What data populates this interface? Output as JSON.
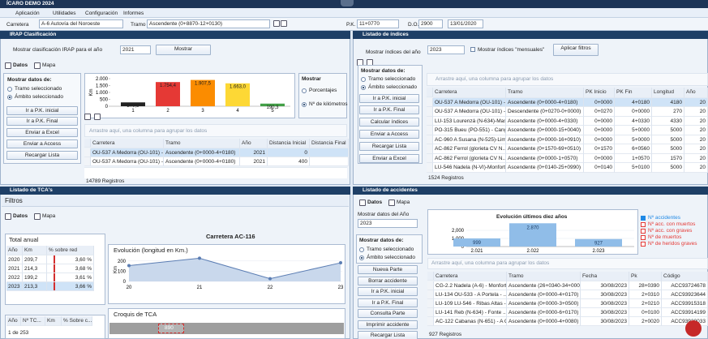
{
  "app": {
    "title": "ÍCARO DEMO 2024",
    "menu": [
      "Aplicación",
      "Utilidades",
      "Configuración",
      "Informes"
    ]
  },
  "toolbar": {
    "road_label": "Carretera",
    "road": "A-6 Autovía del Noroeste",
    "section_label": "Tramo",
    "section": "Ascendente (0+8870-12+0130)",
    "pk_label": "P.K.",
    "pk": "11+0770",
    "do_label": "D.O.",
    "do": "2900",
    "date": "13/01/2020",
    "tooltip": "Tramo"
  },
  "irap": {
    "title": "IRAP Clasificación",
    "year_label": "Mostrar clasificación IRAP para el año",
    "year": "2021",
    "show_button": "Mostrar",
    "tabs": [
      "Datos",
      "Mapa"
    ],
    "group_title": "Mostrar datos de:",
    "radios": [
      "Tramo seleccionado",
      "Ámbito seleccionado"
    ],
    "buttons": [
      "Ir a P.K. inicial",
      "Ir a P.K. Final",
      "Enviar a Excel",
      "Enviar a Access",
      "Recargar Lista"
    ],
    "chart": {
      "type": "bar",
      "y_label": "Km",
      "categories": [
        "1",
        "2",
        "3",
        "4",
        "5"
      ],
      "values": [
        279.5,
        1754.4,
        1907.5,
        1663.0,
        190.3
      ],
      "value_labels": [
        "279,5",
        "1.754,4",
        "1.907,5",
        "1.663,0",
        "190,3"
      ],
      "colors": [
        "#222222",
        "#e53935",
        "#fb8c00",
        "#fdd835",
        "#43a047"
      ],
      "ylim": [
        0,
        2000
      ],
      "yticks": [
        0,
        500,
        {
          "value": 1000,
          "label": "1.000"
        },
        {
          "value": 1500,
          "label": "1.500"
        },
        {
          "value": 2000,
          "label": "2.000"
        }
      ]
    },
    "show_group": {
      "title": "Mostrar",
      "options": [
        "Porcentajes",
        "Nº de kilómetros"
      ]
    },
    "drag_hint": "Arrastre aquí, una columna para agrupar los datos",
    "table": {
      "headers": [
        "Carretera",
        "Tramo",
        "Año",
        "Distancia Inicial",
        "Distancia Final"
      ],
      "rows": [
        [
          "OU-537 A Medorra (OU-101) - ...",
          "Ascendente (0+0000-4+0180)",
          "2021",
          "0",
          ""
        ],
        [
          "OU-537 A Medorra (OU-101) - ...",
          "Ascendente (0+0000-4+0180)",
          "2021",
          "400",
          ""
        ]
      ]
    },
    "records": "14789 Registros"
  },
  "indices": {
    "title": "Listado de índices",
    "year_label": "Mostrar índices del año",
    "year": "2023",
    "monthly": "Mostrar índices \"mensuales\"",
    "apply_button": "Aplicar filtros",
    "group_title": "Mostrar datos de:",
    "radios": [
      "Tramo seleccionado",
      "Ámbito seleccionado"
    ],
    "buttons": [
      "Ir a P.K. inicial",
      "Ir a P.K. Final",
      "Calcular índices",
      "Enviar a Access",
      "Recargar Lista",
      "Enviar a Excel"
    ],
    "drag_hint": "Arrastre aquí, una columna para agrupar los datos",
    "table": {
      "headers": [
        "Carretera",
        "Tramo",
        "PK Inicio",
        "PK Fin",
        "Longitud",
        "Año"
      ],
      "rows": [
        [
          "OU-537 A Medorra (OU-101) -...",
          "Ascendente (0+0000-4+0180)",
          "0+0000",
          "4+0180",
          "4180",
          "20"
        ],
        [
          "OU-537 A Medorra (OU-101) -...",
          "Descendente (0+0270-0+0000)",
          "0+0270",
          "0+0000",
          "270",
          "20"
        ],
        [
          "LU-153 Lourenzá (N-634)-Mas...",
          "Ascendente (0+0000-4+0330)",
          "0+0000",
          "4+0330",
          "4330",
          "20"
        ],
        [
          "PO-315 Bueu (PO-551) - Canga...",
          "Ascendente (0+0000-15+0040)",
          "0+0000",
          "5+0000",
          "5000",
          "20"
        ],
        [
          "AC-960 A Susana (N-525)-Lim...",
          "Ascendente (0+0000-16+0910)",
          "0+0000",
          "5+0000",
          "5000",
          "20"
        ],
        [
          "AC-862 Ferrol (glorieta CV N...",
          "Ascendente (0+1570-69+0510)",
          "0+1570",
          "6+0560",
          "5000",
          "20"
        ],
        [
          "AC-862 Ferrol (glorieta CV N...",
          "Ascendente (0+0000-1+0570)",
          "0+0000",
          "1+0570",
          "1570",
          "20"
        ],
        [
          "LU-546 Nadela (N-VI)-Monfort...",
          "Ascendente (0+0140-25+0990)",
          "0+0140",
          "5+0100",
          "5000",
          "20"
        ]
      ]
    },
    "records": "1524 Registros"
  },
  "tca": {
    "title": "Listado de TCA's",
    "filters": "Filtros",
    "tabs": [
      "Datos",
      "Mapa"
    ],
    "annual": {
      "title": "Total anual",
      "headers": [
        "Año",
        "Km",
        "% sobre red"
      ],
      "rows": [
        [
          "2020",
          "209,7",
          "3,60 %"
        ],
        [
          "2021",
          "214,3",
          "3,68 %"
        ],
        [
          "2022",
          "199,2",
          "3,61 %"
        ],
        [
          "2023",
          "213,3",
          "3,66 %"
        ]
      ]
    },
    "road_title": "Carretera AC-116",
    "chart": {
      "type": "line",
      "title": "Evolución (longitud en Km.)",
      "y_label": "Km",
      "categories": [
        "20",
        "21",
        "22",
        "23"
      ],
      "values": [
        155,
        227,
        27,
        182
      ],
      "ylim": [
        0,
        230
      ],
      "yticks": [
        0,
        100,
        200
      ]
    },
    "sketch": {
      "title": "Croquis de TCA",
      "box_label": "890"
    },
    "list": {
      "headers": [
        "Año",
        "Nº TC...",
        "Km",
        "% Sobre c..."
      ],
      "pager": "1 de 253"
    }
  },
  "accidents": {
    "title": "Listado de accidentes",
    "tabs": [
      "Datos",
      "Mapa"
    ],
    "year_label": "Mostrar datos del Año",
    "year": "2023",
    "group_title": "Mostrar datos de:",
    "radios": [
      "Tramo seleccionado",
      "Ámbito seleccionado"
    ],
    "buttons": [
      "Nueva Parte",
      "Borrar accidente",
      "Ir a P.K. inicial",
      "Ir a P.K. Final",
      "Consulta Parte",
      "Imprimir accidente",
      "Recargar Lista"
    ],
    "chart": {
      "type": "bar",
      "title": "Evolución últimos diez años",
      "categories": [
        "2.021",
        "2.022",
        "2.023"
      ],
      "values": [
        999,
        2870,
        927
      ],
      "value_labels": [
        "999",
        "2.870",
        "927"
      ],
      "color": "#90bde8",
      "ylim": [
        0,
        3000
      ],
      "yticks": [
        0,
        {
          "value": 1000,
          "label": "1,000"
        },
        {
          "value": 2000,
          "label": "2,000"
        }
      ],
      "legend": [
        "Nº accidentes",
        "Nº acc. con muertos",
        "Nº acc. con graves",
        "Nº de muertos",
        "Nº de heridos graves"
      ]
    },
    "drag_hint": "Arrastre aquí, una columna para agrupar los datos",
    "table": {
      "headers": [
        "Carretera",
        "Tramo",
        "Fecha",
        "Pk",
        "Código"
      ],
      "rows": [
        [
          "CG-2.2 Nadela (A-6) - Monfort...",
          "Ascendente (26+0340-34+0000)",
          "30/08/2023",
          "28+0390",
          "ACC93724678"
        ],
        [
          "LU-134 OU-533 - A Portela - ...",
          "Ascendente (0+0000-4+0170)",
          "30/08/2023",
          "2+0310",
          "ACC93923644"
        ],
        [
          "LU-109 LU-546 - Ribas Altas - ...",
          "Ascendente (0+0000-3+0500)",
          "30/08/2023",
          "2+0210",
          "ACC93915318"
        ],
        [
          "LU-141 Reb (N-634) - Fonte ...",
          "Ascendente (0+0000-6+0170)",
          "30/08/2023",
          "0+0100",
          "ACC93914199"
        ],
        [
          "AC-122 Cabanas (N-651) - A G...",
          "Ascendente (0+0000-4+0080)",
          "30/08/2023",
          "2+0020",
          "ACC93920033"
        ]
      ]
    },
    "records": "927 Registros"
  }
}
